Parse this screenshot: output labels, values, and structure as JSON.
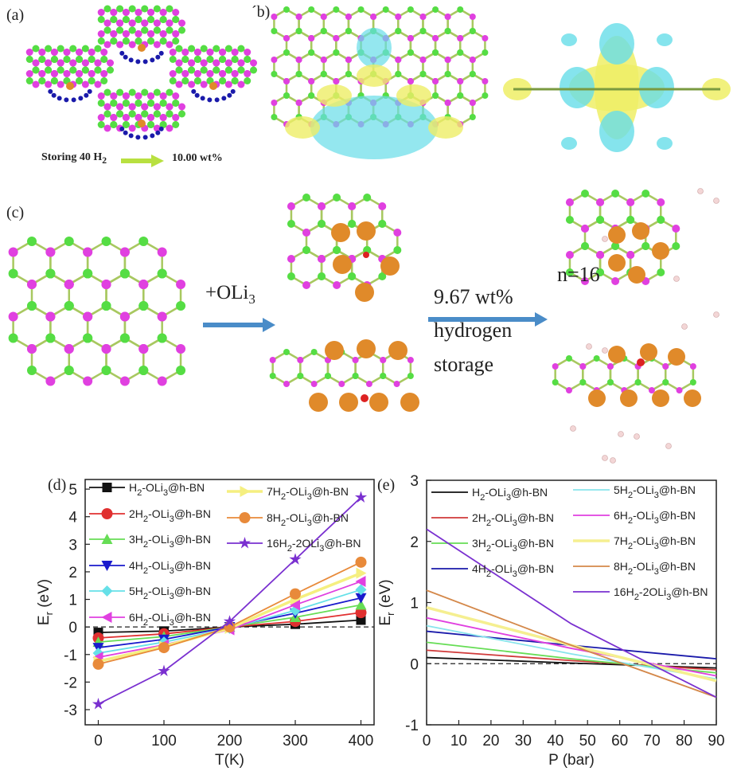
{
  "panels": {
    "a": {
      "label": "(a)",
      "caption_left": "Storing 40 H",
      "caption_sub": "2",
      "caption_right": "10.00  wt%"
    },
    "b": {
      "label": "´b)"
    },
    "c": {
      "label": "(c)",
      "reagent": "+OLi",
      "reagent_sub": "3",
      "capacity": "9.67 wt%",
      "line2": "hydrogen",
      "line3": "storage",
      "n_label": "n=16"
    },
    "d": {
      "label": "(d)"
    },
    "e": {
      "label": "(e)"
    }
  },
  "atom_colors": {
    "B": "#e040e0",
    "N": "#55dd44",
    "Li": "#e08a2a",
    "O": "#dd2222",
    "H": "#1a1aaa",
    "H2_light": "#f3d6d6",
    "charge_gain": "#eeee66",
    "charge_loss": "#66dde8",
    "arrow": "#4a8cc8",
    "arrow_a": "#b8e040"
  },
  "chart_data": [
    {
      "type": "line",
      "panel": "d",
      "xlabel": "T(K)",
      "ylabel": "E",
      "ylabel_sub": "r",
      "ylabel_unit": " (eV)",
      "xlim": [
        -20,
        420
      ],
      "ylim": [
        -3.55,
        5.35
      ],
      "xticks": [
        "0",
        "100",
        "200",
        "300",
        "400"
      ],
      "yticks": [
        "-3",
        "-2",
        "-1",
        "0",
        "1",
        "2",
        "3",
        "4",
        "5"
      ],
      "reference_line": 0,
      "grid": false,
      "legend": "top-left, two columns",
      "x": [
        0,
        100,
        200,
        300,
        400
      ],
      "series": [
        {
          "name": "H2-OLi3@h-BN",
          "color": "#111111",
          "marker": "square",
          "values": [
            -0.2,
            -0.15,
            0.0,
            0.1,
            0.25
          ]
        },
        {
          "name": "2H2-OLi3@h-BN",
          "color": "#e03030",
          "marker": "circle",
          "values": [
            -0.4,
            -0.25,
            0.0,
            0.2,
            0.52
          ]
        },
        {
          "name": "3H2-OLi3@h-BN",
          "color": "#66dd55",
          "marker": "triangle-up",
          "values": [
            -0.55,
            -0.35,
            0.0,
            0.35,
            0.8
          ]
        },
        {
          "name": "4H2-OLi3@h-BN",
          "color": "#1a1acc",
          "marker": "triangle-down",
          "values": [
            -0.75,
            -0.45,
            0.0,
            0.5,
            1.05
          ]
        },
        {
          "name": "5H2-OLi3@h-BN",
          "color": "#66e0e8",
          "marker": "diamond",
          "values": [
            -0.95,
            -0.55,
            -0.05,
            0.6,
            1.35
          ]
        },
        {
          "name": "6H2-OLi3@h-BN",
          "color": "#e040e0",
          "marker": "triangle-left",
          "values": [
            -1.1,
            -0.65,
            -0.1,
            0.8,
            1.65
          ]
        },
        {
          "name": "7H2-OLi3@h-BN",
          "color": "#f5ef80",
          "marker": "triangle-right",
          "values": [
            -1.25,
            -0.7,
            -0.05,
            1.0,
            1.95
          ]
        },
        {
          "name": "8H2-OLi3@h-BN",
          "color": "#e88a3a",
          "marker": "circle",
          "values": [
            -1.35,
            -0.75,
            0.0,
            1.2,
            2.35
          ]
        },
        {
          "name": "16H2-2OLi3@h-BN",
          "color": "#7a30d0",
          "marker": "star",
          "values": [
            -2.8,
            -1.6,
            0.2,
            2.45,
            4.7
          ]
        }
      ]
    },
    {
      "type": "line",
      "panel": "e",
      "xlabel": "P (bar)",
      "ylabel": "E",
      "ylabel_sub": "r",
      "ylabel_unit": " (eV)",
      "xlim": [
        0,
        90
      ],
      "ylim": [
        -1,
        3
      ],
      "xticks": [
        "0",
        "10",
        "20",
        "30",
        "40",
        "50",
        "60",
        "70",
        "80",
        "90"
      ],
      "yticks": [
        "-1",
        "0",
        "1",
        "2",
        "3"
      ],
      "reference_line": 0,
      "grid": false,
      "legend": "top, two columns",
      "x": [
        0,
        45,
        90
      ],
      "series": [
        {
          "name": "H2-OLi3@h-BN",
          "color": "#111111",
          "values": [
            0.1,
            0.01,
            -0.07
          ]
        },
        {
          "name": "2H2-OLi3@h-BN",
          "color": "#d03a3a",
          "values": [
            0.22,
            0.05,
            -0.1
          ]
        },
        {
          "name": "3H2-OLi3@h-BN",
          "color": "#66dd55",
          "values": [
            0.35,
            0.08,
            -0.15
          ]
        },
        {
          "name": "4H2-OLi3@h-BN",
          "color": "#1a1aaa",
          "values": [
            0.53,
            0.3,
            0.08
          ]
        },
        {
          "name": "5H2-OLi3@h-BN",
          "color": "#88e4ec",
          "values": [
            0.62,
            0.16,
            -0.25
          ]
        },
        {
          "name": "6H2-OLi3@h-BN",
          "color": "#e040e0",
          "values": [
            0.75,
            0.25,
            -0.2
          ]
        },
        {
          "name": "7H2-OLi3@h-BN",
          "color": "#f5ef90",
          "values": [
            0.92,
            0.3,
            -0.28
          ]
        },
        {
          "name": "8H2-OLi3@h-BN",
          "color": "#d4884a",
          "values": [
            1.2,
            0.3,
            -0.55
          ]
        },
        {
          "name": "16H2-2OLi3@h-BN",
          "color": "#7a30d0",
          "values": [
            2.2,
            0.65,
            -0.55
          ]
        }
      ]
    }
  ]
}
